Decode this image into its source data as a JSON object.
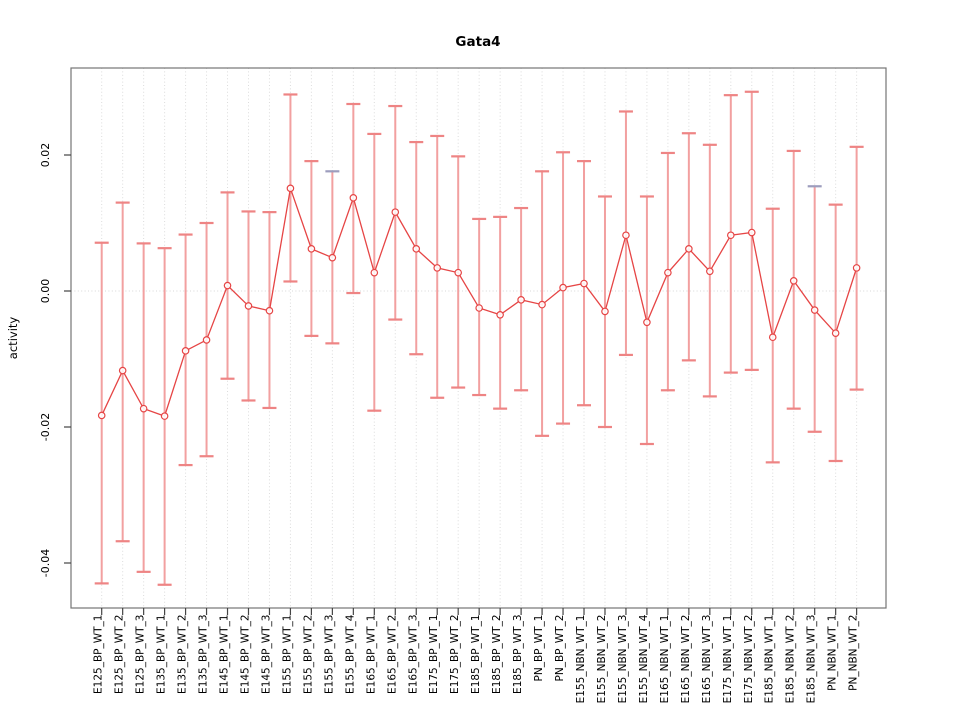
{
  "chart_data": {
    "type": "line",
    "title": "Gata4",
    "xlabel": "",
    "ylabel": "activity",
    "legend": "none",
    "grid": "vertical dotted gridlines at each category; dotted horizontal line at y=0",
    "ylim": [
      -0.0466,
      0.0328
    ],
    "yticks": [
      0.02,
      0.0,
      -0.02,
      -0.04
    ],
    "ytick_labels": [
      "0.02",
      "0.00",
      "-0.02",
      "-0.04"
    ],
    "point_style": "open-circle",
    "categories": [
      "E125_BP_WT_1",
      "E125_BP_WT_2",
      "E125_BP_WT_3",
      "E135_BP_WT_1",
      "E135_BP_WT_2",
      "E135_BP_WT_3",
      "E145_BP_WT_1",
      "E145_BP_WT_2",
      "E145_BP_WT_3",
      "E155_BP_WT_1",
      "E155_BP_WT_2",
      "E155_BP_WT_3",
      "E155_BP_WT_4",
      "E165_BP_WT_1",
      "E165_BP_WT_2",
      "E165_BP_WT_3",
      "E175_BP_WT_1",
      "E175_BP_WT_2",
      "E185_BP_WT_1",
      "E185_BP_WT_2",
      "E185_BP_WT_3",
      "PN_BP_WT_1",
      "PN_BP_WT_2",
      "E155_NBN_WT_1",
      "E155_NBN_WT_2",
      "E155_NBN_WT_3",
      "E155_NBN_WT_4",
      "E165_NBN_WT_1",
      "E165_NBN_WT_2",
      "E165_NBN_WT_3",
      "E175_NBN_WT_1",
      "E175_NBN_WT_2",
      "E185_NBN_WT_1",
      "E185_NBN_WT_2",
      "E185_NBN_WT_3",
      "PN_NBN_WT_1",
      "PN_NBN_WT_2"
    ],
    "series": [
      {
        "name": "activity",
        "values": [
          -0.0183,
          -0.0117,
          -0.0173,
          -0.0184,
          -0.0088,
          -0.0072,
          0.0008,
          -0.0022,
          -0.0029,
          0.0151,
          0.0062,
          0.0049,
          0.0137,
          0.0027,
          0.0116,
          0.0062,
          0.0034,
          0.0027,
          -0.0025,
          -0.0035,
          -0.0013,
          -0.002,
          0.0005,
          0.0011,
          -0.003,
          0.0082,
          -0.0046,
          0.0027,
          0.0062,
          0.0029,
          0.0082,
          0.0086,
          -0.0068,
          0.0015,
          -0.0028,
          -0.0062,
          0.0034
        ],
        "error_upper": [
          0.0071,
          0.013,
          0.007,
          0.0063,
          0.0083,
          0.01,
          0.0145,
          0.0117,
          0.0116,
          0.0289,
          0.0191,
          0.0176,
          0.0275,
          0.0231,
          0.0272,
          0.0219,
          0.0228,
          0.0198,
          0.0106,
          0.0109,
          0.0122,
          0.0176,
          0.0204,
          0.0191,
          0.0139,
          0.0264,
          0.0139,
          0.0203,
          0.0232,
          0.0215,
          0.0288,
          0.0293,
          0.0121,
          0.0206,
          0.0154,
          0.0127,
          0.0212
        ],
        "error_lower": [
          -0.043,
          -0.0368,
          -0.0413,
          -0.0432,
          -0.0256,
          -0.0243,
          -0.0129,
          -0.0161,
          -0.0172,
          0.0014,
          -0.0066,
          -0.0077,
          -0.0003,
          -0.0176,
          -0.0042,
          -0.0093,
          -0.0157,
          -0.0142,
          -0.0153,
          -0.0173,
          -0.0146,
          -0.0213,
          -0.0195,
          -0.0168,
          -0.02,
          -0.0094,
          -0.0225,
          -0.0146,
          -0.0102,
          -0.0155,
          -0.012,
          -0.0116,
          -0.0252,
          -0.0173,
          -0.0207,
          -0.025,
          -0.0145
        ]
      }
    ],
    "gray_top_cap_labels": [
      "E155_BP_WT_3",
      "E185_NBN_WT_3"
    ],
    "colors": {
      "series_line": "#e64545",
      "point_stroke": "#e64545",
      "error_bar": "#f2a0a0",
      "error_cap": "#ee8484",
      "gray_cap": "#9d9dbd",
      "gridline": "#dcdcdc",
      "zero_line": "#d8d8d8",
      "box": "#757575",
      "tick": "#444444",
      "background": "#ffffff"
    }
  }
}
